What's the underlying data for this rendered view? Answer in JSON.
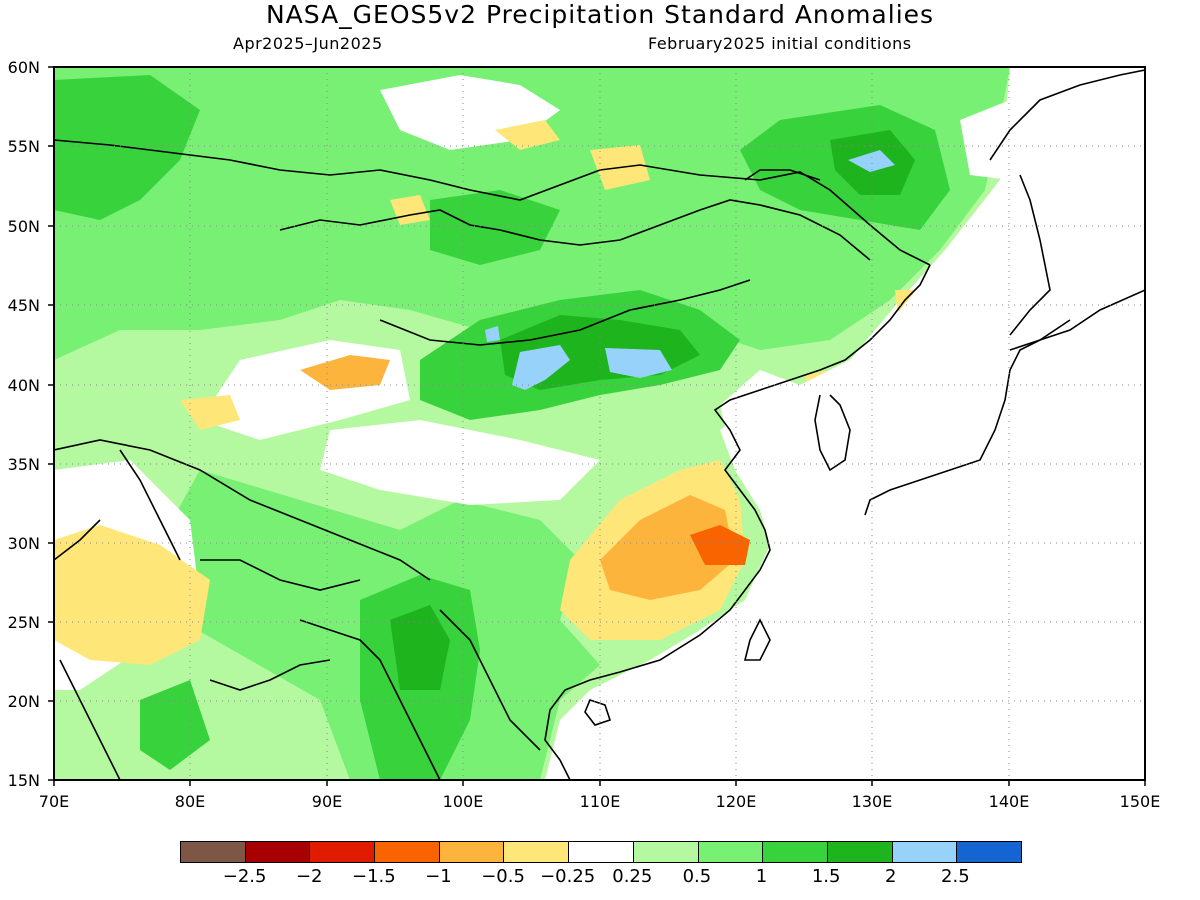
{
  "title": "NASA_GEOS5v2 Precipitation Standard Anomalies",
  "subtitle_left": "Apr2025–Jun2025",
  "subtitle_right": "February2025 initial conditions",
  "lat_labels": [
    "60N",
    "55N",
    "50N",
    "45N",
    "40N",
    "35N",
    "30N",
    "25N",
    "20N",
    "15N"
  ],
  "lon_labels": [
    "70E",
    "80E",
    "90E",
    "100E",
    "110E",
    "120E",
    "130E",
    "140E",
    "150E"
  ],
  "colorbar": {
    "colors": [
      "#7d5646",
      "#a80000",
      "#e11b00",
      "#fa6400",
      "#fcb43c",
      "#ffe678",
      "#ffffff",
      "#b4f8a0",
      "#78f073",
      "#37d23c",
      "#1eb41e",
      "#96d2fa",
      "#1464d2"
    ],
    "labels": [
      "−2.5",
      "−2",
      "−1.5",
      "−1",
      "−0.5",
      "−0.25",
      "0.25",
      "0.5",
      "1",
      "1.5",
      "2",
      "2.5"
    ]
  },
  "map_colors": {
    "light_green": "#b4f8a0",
    "green": "#78f073",
    "mid_green": "#37d23c",
    "dark_green": "#1eb41e",
    "yellow": "#ffe678",
    "orange": "#fcb43c",
    "red_orange": "#fa6400",
    "light_blue": "#96d2fa"
  }
}
